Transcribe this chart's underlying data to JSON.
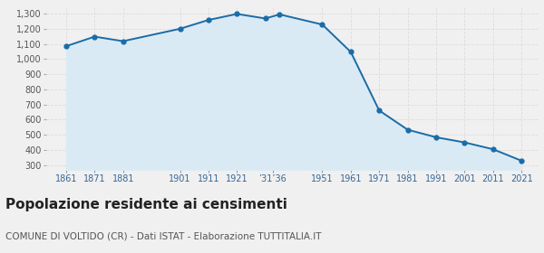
{
  "years": [
    1861,
    1871,
    1881,
    1901,
    1911,
    1921,
    1931,
    1936,
    1951,
    1961,
    1971,
    1981,
    1991,
    2001,
    2011,
    2021
  ],
  "population": [
    1085,
    1148,
    1118,
    1200,
    1258,
    1298,
    1268,
    1295,
    1228,
    1047,
    660,
    533,
    483,
    449,
    404,
    328
  ],
  "x_tick_labels": [
    "1861",
    "1871",
    "1881",
    "1901",
    "1911",
    "1921",
    "’31’36",
    "1951",
    "1961",
    "1971",
    "1981",
    "1991",
    "2001",
    "2011",
    "2021"
  ],
  "x_tick_positions": [
    1861,
    1871,
    1881,
    1901,
    1911,
    1921,
    1933.5,
    1951,
    1961,
    1971,
    1981,
    1991,
    2001,
    2011,
    2021
  ],
  "line_color": "#1a6ca8",
  "fill_color": "#daeaf5",
  "marker_color": "#1a6ca8",
  "background_color": "#f0f0f0",
  "grid_color": "#d8d8d8",
  "ylim_min": 270,
  "ylim_max": 1340,
  "yticks": [
    300,
    400,
    500,
    600,
    700,
    800,
    900,
    1000,
    1100,
    1200,
    1300
  ],
  "xlim_min": 1854,
  "xlim_max": 2027,
  "title": "Popolazione residente ai censimenti",
  "subtitle": "COMUNE DI VOLTIDO (CR) - Dati ISTAT - Elaborazione TUTTITALIA.IT",
  "title_fontsize": 11,
  "subtitle_fontsize": 7.5
}
